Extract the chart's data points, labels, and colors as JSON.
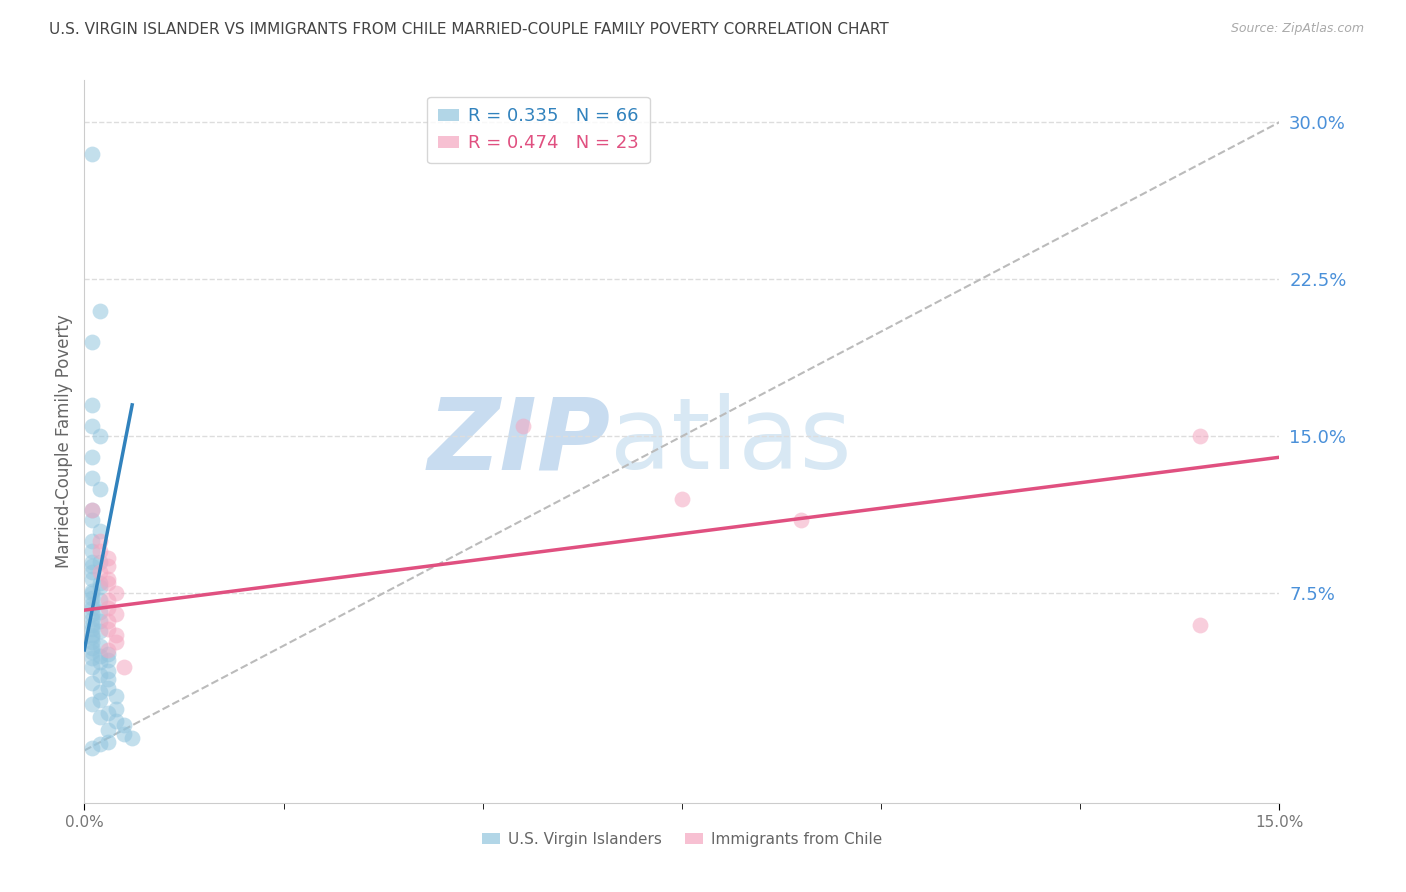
{
  "title": "U.S. VIRGIN ISLANDER VS IMMIGRANTS FROM CHILE MARRIED-COUPLE FAMILY POVERTY CORRELATION CHART",
  "source": "Source: ZipAtlas.com",
  "ylabel": "Married-Couple Family Poverty",
  "xmin": 0.0,
  "xmax": 0.15,
  "ymin": -0.025,
  "ymax": 0.32,
  "yticks": [
    0.075,
    0.15,
    0.225,
    0.3
  ],
  "ytick_labels": [
    "7.5%",
    "15.0%",
    "22.5%",
    "30.0%"
  ],
  "blue_R": 0.335,
  "blue_N": 66,
  "pink_R": 0.474,
  "pink_N": 23,
  "blue_label": "U.S. Virgin Islanders",
  "pink_label": "Immigrants from Chile",
  "blue_color": "#92c5de",
  "pink_color": "#f4a6c0",
  "blue_line_color": "#3182bd",
  "pink_line_color": "#e05080",
  "ref_line_color": "#bbbbbb",
  "background_color": "#ffffff",
  "grid_color": "#dddddd",
  "title_color": "#444444",
  "axis_label_color": "#666666",
  "right_tick_color": "#4a90d9",
  "watermark_color": "#ddeeff",
  "blue_x": [
    0.001,
    0.002,
    0.001,
    0.001,
    0.001,
    0.002,
    0.001,
    0.001,
    0.002,
    0.001,
    0.001,
    0.002,
    0.001,
    0.001,
    0.002,
    0.001,
    0.001,
    0.001,
    0.001,
    0.002,
    0.002,
    0.001,
    0.001,
    0.001,
    0.002,
    0.001,
    0.001,
    0.002,
    0.001,
    0.001,
    0.002,
    0.001,
    0.001,
    0.002,
    0.001,
    0.001,
    0.001,
    0.002,
    0.001,
    0.001,
    0.003,
    0.002,
    0.001,
    0.003,
    0.002,
    0.001,
    0.003,
    0.002,
    0.003,
    0.001,
    0.003,
    0.002,
    0.004,
    0.002,
    0.001,
    0.004,
    0.003,
    0.002,
    0.004,
    0.005,
    0.003,
    0.005,
    0.006,
    0.003,
    0.002,
    0.001
  ],
  "blue_y": [
    0.285,
    0.21,
    0.195,
    0.165,
    0.155,
    0.15,
    0.14,
    0.13,
    0.125,
    0.115,
    0.11,
    0.105,
    0.1,
    0.095,
    0.09,
    0.09,
    0.088,
    0.085,
    0.082,
    0.08,
    0.078,
    0.076,
    0.075,
    0.073,
    0.072,
    0.07,
    0.068,
    0.066,
    0.065,
    0.063,
    0.062,
    0.06,
    0.058,
    0.057,
    0.055,
    0.054,
    0.052,
    0.05,
    0.049,
    0.047,
    0.046,
    0.045,
    0.044,
    0.043,
    0.042,
    0.04,
    0.038,
    0.036,
    0.034,
    0.032,
    0.03,
    0.028,
    0.026,
    0.024,
    0.022,
    0.02,
    0.018,
    0.016,
    0.014,
    0.012,
    0.01,
    0.008,
    0.006,
    0.004,
    0.003,
    0.001
  ],
  "pink_x": [
    0.001,
    0.002,
    0.002,
    0.003,
    0.003,
    0.002,
    0.003,
    0.003,
    0.004,
    0.003,
    0.003,
    0.004,
    0.003,
    0.003,
    0.004,
    0.004,
    0.003,
    0.005,
    0.055,
    0.075,
    0.09,
    0.14,
    0.14
  ],
  "pink_y": [
    0.115,
    0.1,
    0.095,
    0.092,
    0.088,
    0.085,
    0.082,
    0.08,
    0.075,
    0.072,
    0.068,
    0.065,
    0.062,
    0.058,
    0.055,
    0.052,
    0.048,
    0.04,
    0.155,
    0.12,
    0.11,
    0.15,
    0.06
  ],
  "blue_line_x": [
    0.0,
    0.006
  ],
  "blue_line_y": [
    0.048,
    0.165
  ],
  "pink_line_x": [
    0.0,
    0.15
  ],
  "pink_line_y": [
    0.067,
    0.14
  ]
}
